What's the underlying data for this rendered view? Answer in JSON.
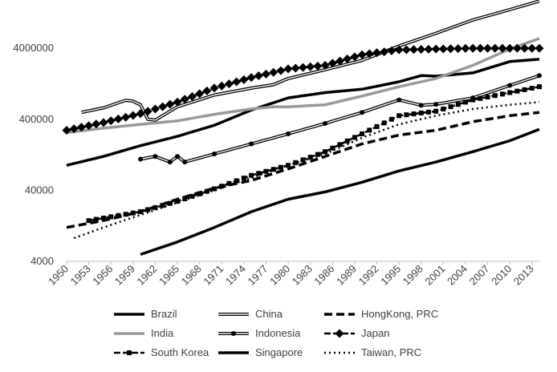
{
  "chart_data": {
    "type": "line",
    "title": "",
    "xlabel": "",
    "ylabel": "",
    "y_scale": "log",
    "ylim": [
      4000,
      14000000
    ],
    "xlim": [
      1950,
      2014
    ],
    "grid": false,
    "legend_position": "bottom",
    "y_ticks": [
      "4000000",
      "400000",
      "40000",
      "4000"
    ],
    "y_tick_values": [
      4000000,
      400000,
      40000,
      4000
    ],
    "x_ticks": [
      "1950",
      "1953",
      "1956",
      "1959",
      "1962",
      "1965",
      "1968",
      "1971",
      "1974",
      "1977",
      "1980",
      "1983",
      "1986",
      "1989",
      "1992",
      "1995",
      "1998",
      "2001",
      "2004",
      "2007",
      "2010",
      "2013"
    ],
    "series": [
      {
        "name": "Brazil",
        "style": "solid-thick",
        "color": "#000000",
        "x": [
          1950,
          1955,
          1960,
          1965,
          1970,
          1975,
          1980,
          1985,
          1990,
          1995,
          1998,
          2000,
          2005,
          2010,
          2014
        ],
        "y": [
          90000,
          120000,
          170000,
          230000,
          330000,
          540000,
          800000,
          950000,
          1060000,
          1350000,
          1650000,
          1620000,
          1800000,
          2600000,
          2800000
        ]
      },
      {
        "name": "China",
        "style": "double",
        "color": "#000000",
        "x": [
          1952,
          1955,
          1958,
          1959,
          1960,
          1961,
          1962,
          1965,
          1970,
          1975,
          1978,
          1980,
          1985,
          1990,
          1995,
          2000,
          2005,
          2010,
          2014
        ],
        "y": [
          500000,
          580000,
          740000,
          720000,
          640000,
          400000,
          390000,
          600000,
          880000,
          1100000,
          1230000,
          1500000,
          2000000,
          2700000,
          4300000,
          6500000,
          10000000,
          14000000,
          18500000
        ]
      },
      {
        "name": "HongKong, PRC",
        "style": "dashed",
        "color": "#000000",
        "x": [
          1950,
          1955,
          1960,
          1965,
          1970,
          1975,
          1980,
          1985,
          1990,
          1995,
          2000,
          2005,
          2010,
          2014
        ],
        "y": [
          12000,
          15000,
          20000,
          30000,
          43000,
          55000,
          80000,
          120000,
          180000,
          240000,
          280000,
          370000,
          450000,
          500000
        ]
      },
      {
        "name": "India",
        "style": "solid-gray",
        "color": "#999999",
        "x": [
          1950,
          1955,
          1960,
          1965,
          1970,
          1975,
          1978,
          1980,
          1985,
          1990,
          1995,
          2000,
          2005,
          2010,
          2014
        ],
        "y": [
          260000,
          300000,
          340000,
          380000,
          470000,
          560000,
          600000,
          600000,
          640000,
          850000,
          1150000,
          1500000,
          2300000,
          3900000,
          5500000
        ]
      },
      {
        "name": "Indonesia",
        "style": "double",
        "color": "#000000",
        "x": [
          1960,
          1962,
          1964,
          1965,
          1966,
          1970,
          1975,
          1980,
          1985,
          1990,
          1995,
          1998,
          2000,
          2005,
          2010,
          2014
        ],
        "y": [
          110000,
          120000,
          100000,
          120000,
          100000,
          130000,
          180000,
          250000,
          350000,
          500000,
          750000,
          630000,
          650000,
          800000,
          1200000,
          1650000
        ]
      },
      {
        "name": "Japan",
        "style": "diamond",
        "color": "#000000",
        "x": [
          1950,
          1955,
          1960,
          1965,
          1970,
          1975,
          1980,
          1985,
          1990,
          1995,
          2000,
          2005,
          2010,
          2014
        ],
        "y": [
          280000,
          360000,
          480000,
          700000,
          1100000,
          1550000,
          2050000,
          2300000,
          3250000,
          3800000,
          3900000,
          4000000,
          4000000,
          4000000
        ]
      },
      {
        "name": "South Korea",
        "style": "square",
        "color": "#000000",
        "x": [
          1953,
          1960,
          1965,
          1970,
          1975,
          1980,
          1985,
          1990,
          1995,
          2000,
          2005,
          2010,
          2014
        ],
        "y": [
          15000,
          20000,
          28000,
          42000,
          65000,
          90000,
          140000,
          250000,
          450000,
          520000,
          750000,
          950000,
          1150000
        ]
      },
      {
        "name": "Singapore",
        "style": "solid-thick",
        "color": "#000000",
        "x": [
          1960,
          1965,
          1970,
          1975,
          1980,
          1985,
          1990,
          1995,
          2000,
          2005,
          2010,
          2014
        ],
        "y": [
          5000,
          7500,
          12000,
          20000,
          30000,
          38000,
          52000,
          75000,
          100000,
          140000,
          200000,
          290000
        ]
      },
      {
        "name": "Taiwan, PRC",
        "style": "dotted",
        "color": "#000000",
        "x": [
          1951,
          1955,
          1960,
          1965,
          1970,
          1975,
          1980,
          1985,
          1990,
          1995,
          2000,
          2005,
          2010,
          2014
        ],
        "y": [
          8500,
          12000,
          18000,
          27000,
          40000,
          60000,
          90000,
          130000,
          220000,
          340000,
          450000,
          560000,
          640000,
          700000
        ]
      }
    ]
  }
}
